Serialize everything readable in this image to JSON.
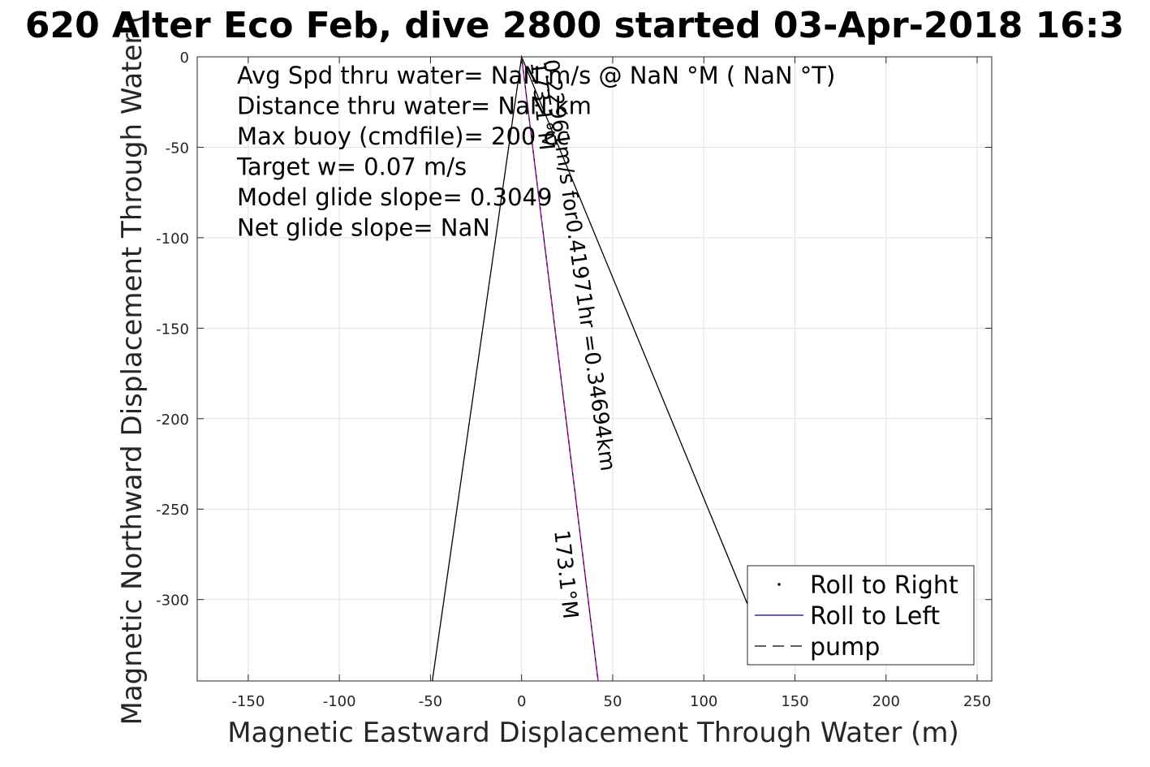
{
  "chart_data": {
    "type": "line",
    "title": "620 Alter Eco Feb, dive 2800 started 03-Apr-2018 16:3",
    "xlabel": "Magnetic Eastward Displacement Through Water (m)",
    "ylabel": "Magnetic Northward Displacement Through Water (",
    "xlim": [
      -178,
      258
    ],
    "ylim": [
      -345,
      0
    ],
    "xticks": [
      -150,
      -100,
      -50,
      0,
      50,
      100,
      150,
      200,
      250
    ],
    "yticks": [
      0,
      -50,
      -100,
      -150,
      -200,
      -250,
      -300
    ],
    "grid": true,
    "info_lines": [
      "Avg Spd thru water=   NaN m/s @   NaN °M (  NaN °T)",
      "Distance thru water=   NaN km",
      "Max buoy (cmdfile)= 200 cc",
      "Target w= 0.07 m/s",
      "Model glide slope= 0.3049",
      "Net glide slope=    NaN"
    ],
    "annotations": [
      {
        "text": "173.1°M",
        "x": 5,
        "y": -3,
        "rotation": 84
      },
      {
        "text": "0.22961m/s for0.41971hr =0.34694km",
        "x": 12,
        "y": -2,
        "rotation": 82
      },
      {
        "text": "173.1°M",
        "x": 18,
        "y": -262,
        "rotation": 84
      }
    ],
    "series": [
      {
        "name": "Roll to Right",
        "style": "dot",
        "color": "#000000",
        "x": [],
        "y": []
      },
      {
        "name": "Roll to Left",
        "style": "solid",
        "color": "#0000aa",
        "x": [],
        "y": []
      },
      {
        "name": "pump",
        "style": "dashed",
        "color": "#000000",
        "x": [],
        "y": []
      }
    ],
    "unlabeled_series": [
      {
        "style": "solid",
        "color": "#000000",
        "x": [
          0,
          -49,
          0,
          127,
          0
        ],
        "y": [
          0,
          -345,
          0,
          -310,
          0
        ]
      },
      {
        "style": "solid",
        "color": "#000000",
        "x": [
          0,
          42
        ],
        "y": [
          0,
          -345
        ]
      },
      {
        "style": "dashed",
        "color": "#cc00cc",
        "x": [
          0,
          42
        ],
        "y": [
          0,
          -345
        ]
      }
    ],
    "legend": {
      "location": "bottom-right"
    }
  }
}
